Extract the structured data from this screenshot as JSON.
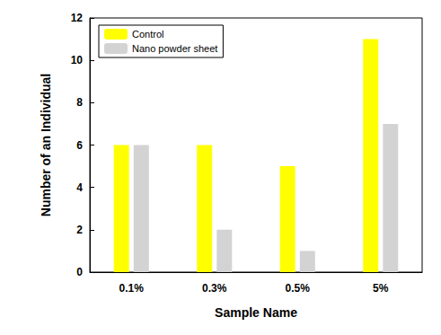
{
  "chart_data": {
    "type": "bar",
    "x_label": "Sample Name",
    "y_label": "Number of an Individual",
    "categories": [
      "0.1%",
      "0.3%",
      "0.5%",
      "5%"
    ],
    "series": [
      {
        "name": "Control",
        "color": "#ffff00",
        "values": [
          6,
          6,
          5,
          11
        ]
      },
      {
        "name": "Nano powder sheet",
        "color": "#d3d3d3",
        "values": [
          6,
          2,
          1,
          7
        ]
      }
    ],
    "ylim": [
      0,
      12
    ],
    "yticks": [
      0,
      2,
      4,
      6,
      8,
      10,
      12
    ],
    "legend": "upper left",
    "grid": false
  }
}
